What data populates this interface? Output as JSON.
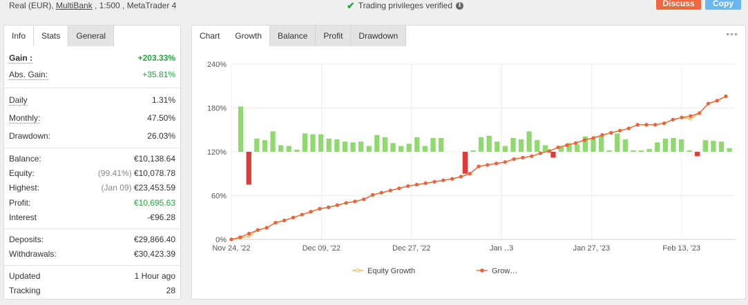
{
  "header": {
    "account_prefix": "Real (EUR), ",
    "broker": "MultiBank",
    "account_suffix": " , 1:500 , MetaTrader 4",
    "verified_text": "Trading privileges verified",
    "discuss_label": "Discuss",
    "copy_label": "Copy"
  },
  "left_tabs": [
    {
      "label": "Info"
    },
    {
      "label": "Stats"
    },
    {
      "label": "General"
    }
  ],
  "stats": {
    "gain": {
      "label": "Gain :",
      "value": "+203.33%"
    },
    "abs_gain": {
      "label": "Abs. Gain:",
      "value": "+35.81%"
    },
    "daily": {
      "label": "Daily",
      "value": "1.31%"
    },
    "monthly": {
      "label": "Monthly:",
      "value": "47.50%"
    },
    "drawdown": {
      "label": "Drawdown:",
      "value": "26.03%"
    },
    "balance": {
      "label": "Balance:",
      "value": "€10,138.64"
    },
    "equity": {
      "label": "Equity:",
      "note": "(99.41%)",
      "value": "€10,078.78"
    },
    "highest": {
      "label": "Highest:",
      "note": "(Jan 09)",
      "value": "€23,453.59"
    },
    "profit": {
      "label": "Profit:",
      "value": "€10,695.63"
    },
    "interest": {
      "label": "Interest",
      "value": "-€96.28"
    },
    "deposits": {
      "label": "Deposits:",
      "value": "€29,866.40"
    },
    "withdrawals": {
      "label": "Withdrawals:",
      "value": "€30,423.39"
    },
    "updated": {
      "label": "Updated",
      "value": "1 Hour ago"
    },
    "tracking": {
      "label": "Tracking",
      "value": "28"
    }
  },
  "chart_tabs": [
    {
      "label": "Chart"
    },
    {
      "label": "Growth"
    },
    {
      "label": "Balance"
    },
    {
      "label": "Profit"
    },
    {
      "label": "Drawdown"
    }
  ],
  "colors": {
    "growth_line": "#e8643a",
    "equity_line": "#f5b041",
    "bar_positive": "#8fd96f",
    "bar_negative": "#e03b3b",
    "verified_check": "#27a744"
  },
  "chart_data": {
    "type": "line",
    "y_ticks": [
      "0%",
      "60%",
      "120%",
      "180%",
      "240%"
    ],
    "ylim": [
      0,
      240
    ],
    "x_tick_labels": [
      "Nov 24, '22",
      "Dec 09, '22",
      "Dec 27, '22",
      "Jan ‥3",
      "Jan 27, '23",
      "Feb 13, '23"
    ],
    "legend": [
      "Equity Growth",
      "Grow…"
    ],
    "growth": [
      0,
      3,
      8,
      13,
      16,
      23,
      26,
      30,
      34,
      38,
      42,
      44,
      47,
      50,
      52,
      55,
      61,
      64,
      67,
      70,
      73,
      75,
      77,
      79,
      81,
      83,
      86,
      90,
      100,
      102,
      104,
      106,
      110,
      112,
      114,
      118,
      121,
      126,
      129,
      132,
      136,
      139,
      143,
      146,
      149,
      152,
      157,
      157,
      157,
      159,
      164,
      167,
      169,
      173,
      186,
      190,
      196
    ],
    "equity": [
      0,
      2,
      4,
      13,
      16,
      23,
      26,
      30,
      34,
      38,
      42,
      44,
      47,
      50,
      52,
      55,
      61,
      64,
      67,
      70,
      73,
      75,
      77,
      79,
      81,
      83,
      86,
      90,
      100,
      102,
      104,
      106,
      110,
      112,
      114,
      118,
      121,
      126,
      129,
      132,
      136,
      139,
      143,
      146,
      149,
      152,
      157,
      157,
      157,
      159,
      164,
      167,
      165,
      173,
      186,
      190,
      196
    ],
    "daily_change": [
      62,
      -45,
      18,
      16,
      28,
      9,
      8,
      3,
      25,
      24,
      24,
      18,
      17,
      14,
      13,
      14,
      8,
      23,
      20,
      12,
      8,
      11,
      20,
      8,
      19,
      19,
      0,
      0,
      -30,
      2,
      20,
      22,
      14,
      8,
      19,
      17,
      28,
      16,
      9,
      -8,
      8,
      12,
      10,
      21,
      18,
      22,
      2,
      25,
      17,
      2,
      2,
      4,
      13,
      18,
      19,
      17,
      2,
      -6,
      16,
      15,
      14,
      5
    ]
  }
}
